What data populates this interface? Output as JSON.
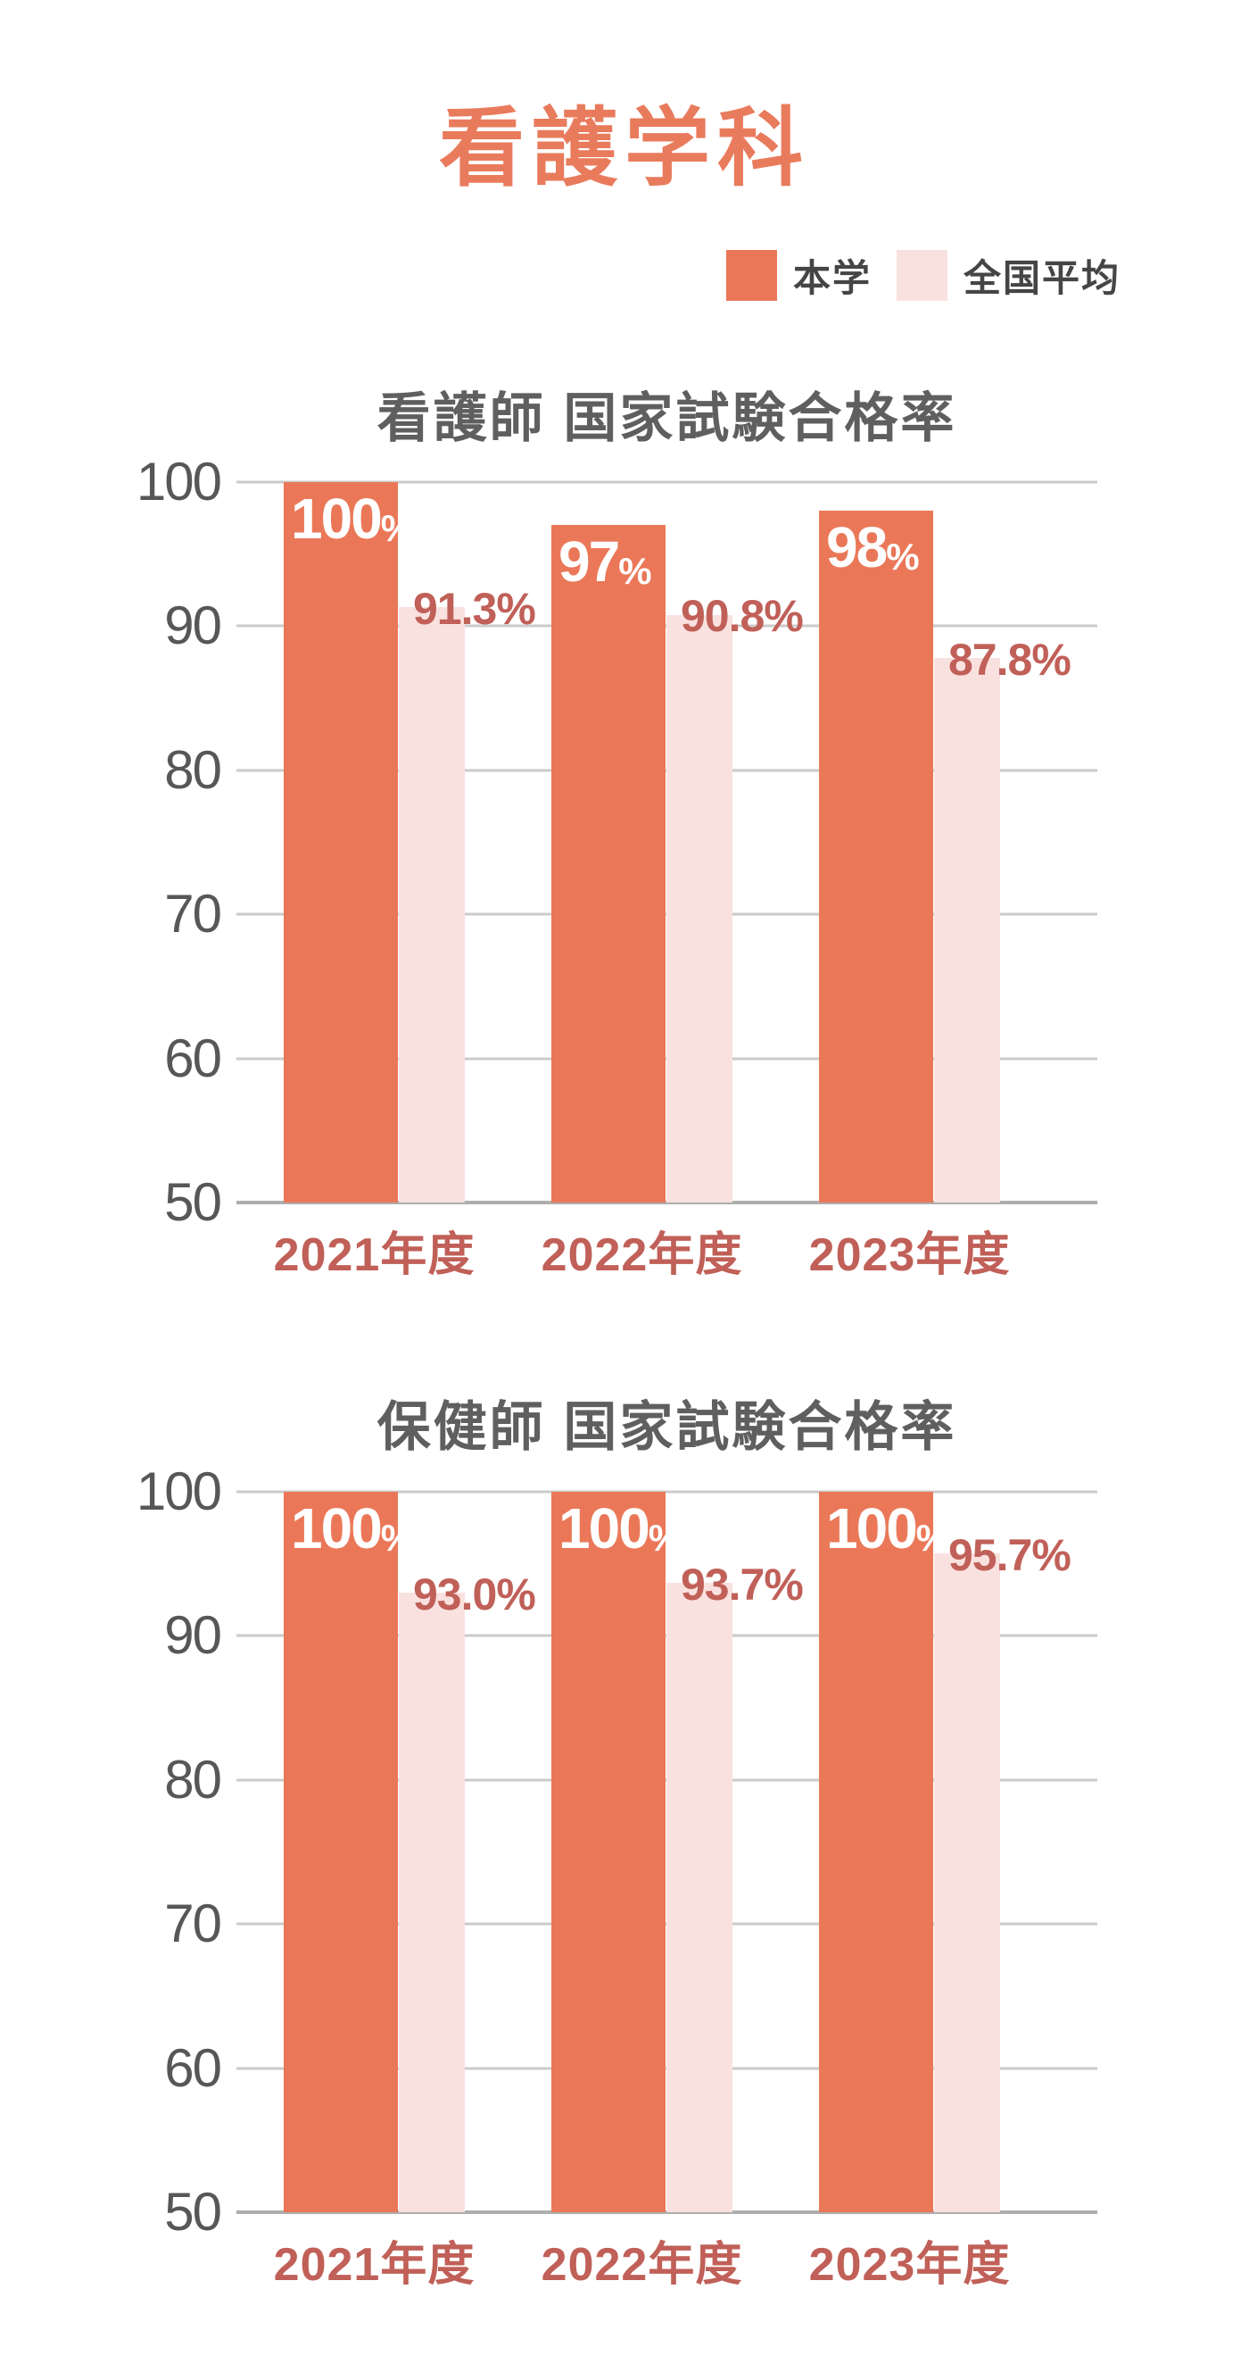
{
  "page": {
    "title": "看護学科",
    "background": "#ffffff"
  },
  "colors": {
    "title": "#E97B5D",
    "bar_school": "#EA7858",
    "bar_national": "#F9E1DF",
    "value_label_red": "#C06058",
    "category_label_red": "#C06058",
    "tick_gray": "#575757",
    "chart_title_gray": "#5F5F5F",
    "legend_text": "#454545",
    "gridline": "#CBCBCB",
    "baseline": "#AEAEAE",
    "bar_label_white": "#FFFFFF"
  },
  "legend": {
    "items": [
      {
        "label": "本学",
        "color": "#EA7858"
      },
      {
        "label": "全国平均",
        "color": "#F9E1DF"
      }
    ]
  },
  "chart_data": [
    {
      "type": "bar",
      "title": "看護師 国家試験合格率",
      "categories": [
        "2021年度",
        "2022年度",
        "2023年度"
      ],
      "series": [
        {
          "name": "本学",
          "values": [
            100,
            97,
            98
          ],
          "labels": [
            "100%",
            "97%",
            "98%"
          ]
        },
        {
          "name": "全国平均",
          "values": [
            91.3,
            90.8,
            87.8
          ],
          "labels": [
            "91.3%",
            "90.8%",
            "87.8%"
          ]
        }
      ],
      "ylim": [
        50,
        100
      ],
      "yticks": [
        100,
        90,
        80,
        70,
        60,
        50
      ],
      "grid": true,
      "legend_position": "top-right"
    },
    {
      "type": "bar",
      "title": "保健師 国家試験合格率",
      "categories": [
        "2021年度",
        "2022年度",
        "2023年度"
      ],
      "series": [
        {
          "name": "本学",
          "values": [
            100,
            100,
            100
          ],
          "labels": [
            "100%",
            "100%",
            "100%"
          ]
        },
        {
          "name": "全国平均",
          "values": [
            93.0,
            93.7,
            95.7
          ],
          "labels": [
            "93.0%",
            "93.7%",
            "95.7%"
          ]
        }
      ],
      "ylim": [
        50,
        100
      ],
      "yticks": [
        100,
        90,
        80,
        70,
        60,
        50
      ],
      "grid": true,
      "legend_position": "top-right"
    }
  ]
}
